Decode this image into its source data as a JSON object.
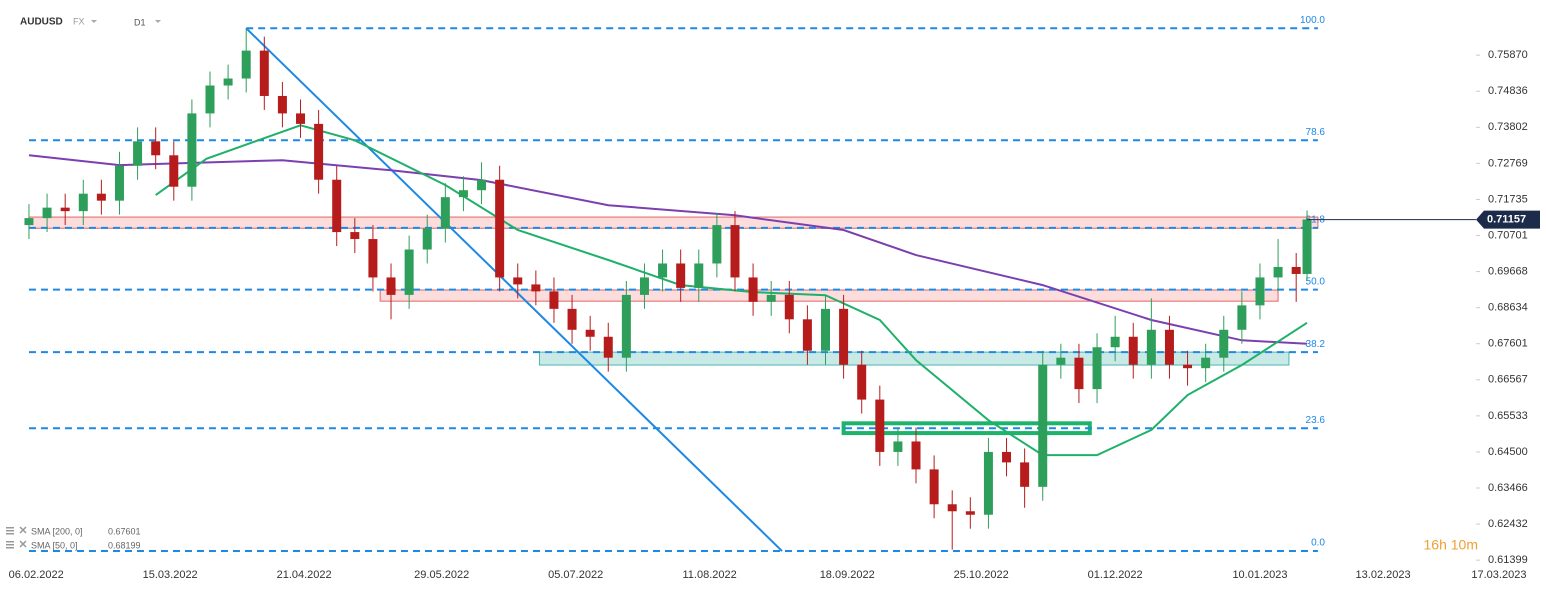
{
  "chart_data": {
    "type": "candlestick",
    "symbol": "AUDUSD",
    "market": "FX",
    "interval": "D1",
    "countdown": "16h 10m",
    "up_color": "#2e9e5b",
    "down_color": "#b71c1c",
    "xlim": [
      "27.01.2022",
      "30.03.2023"
    ],
    "xticks": [
      "06.02.2022",
      "15.03.2022",
      "21.04.2022",
      "29.05.2022",
      "05.07.2022",
      "11.08.2022",
      "18.09.2022",
      "25.10.2022",
      "01.12.2022",
      "10.01.2023",
      "13.02.2023",
      "17.03.2023"
    ],
    "ylim": [
      0.6126,
      0.7745
    ],
    "yticks": [
      {
        "value": 0.7587,
        "label": "0.75870"
      },
      0.74836,
      0.73802,
      0.72769,
      0.71735,
      0.70701,
      0.69668,
      0.68634,
      0.67601,
      0.66567,
      0.65533,
      {
        "value": 0.645,
        "label": "0.64500"
      },
      0.63466,
      0.62432,
      0.61399
    ],
    "x": [
      "04.02.2022",
      "09.02.2022",
      "14.02.2022",
      "19.02.2022",
      "24.02.2022",
      "01.03.2022",
      "06.03.2022",
      "11.03.2022",
      "16.03.2022",
      "21.03.2022",
      "26.03.2022",
      "31.03.2022",
      "05.04.2022",
      "10.04.2022",
      "15.04.2022",
      "20.04.2022",
      "25.04.2022",
      "30.04.2022",
      "05.05.2022",
      "10.05.2022",
      "15.05.2022",
      "20.05.2022",
      "25.05.2022",
      "30.05.2022",
      "04.06.2022",
      "09.06.2022",
      "14.06.2022",
      "19.06.2022",
      "24.06.2022",
      "29.06.2022",
      "04.07.2022",
      "09.07.2022",
      "14.07.2022",
      "19.07.2022",
      "24.07.2022",
      "29.07.2022",
      "03.08.2022",
      "08.08.2022",
      "13.08.2022",
      "18.08.2022",
      "23.08.2022",
      "28.08.2022",
      "02.09.2022",
      "07.09.2022",
      "12.09.2022",
      "17.09.2022",
      "22.09.2022",
      "27.09.2022",
      "02.10.2022",
      "07.10.2022",
      "12.10.2022",
      "17.10.2022",
      "22.10.2022",
      "27.10.2022",
      "01.11.2022",
      "06.11.2022",
      "11.11.2022",
      "16.11.2022",
      "21.11.2022",
      "26.11.2022",
      "01.12.2022",
      "06.12.2022",
      "11.12.2022",
      "16.12.2022",
      "21.12.2022",
      "26.12.2022",
      "31.12.2022",
      "05.01.2023",
      "10.01.2023",
      "15.01.2023",
      "20.01.2023",
      "23.01.2023"
    ],
    "open": [
      0.71,
      0.712,
      0.715,
      0.714,
      0.719,
      0.717,
      0.727,
      0.734,
      0.73,
      0.721,
      0.742,
      0.75,
      0.752,
      0.76,
      0.747,
      0.742,
      0.739,
      0.723,
      0.708,
      0.706,
      0.695,
      0.69,
      0.703,
      0.709,
      0.718,
      0.72,
      0.723,
      0.695,
      0.693,
      0.691,
      0.686,
      0.68,
      0.678,
      0.672,
      0.69,
      0.695,
      0.699,
      0.692,
      0.699,
      0.71,
      0.695,
      0.688,
      0.69,
      0.683,
      0.674,
      0.686,
      0.67,
      0.66,
      0.645,
      0.648,
      0.64,
      0.63,
      0.628,
      0.627,
      0.645,
      0.642,
      0.635,
      0.67,
      0.672,
      0.663,
      0.675,
      0.678,
      0.67,
      0.68,
      0.67,
      0.669,
      0.672,
      0.68,
      0.687,
      0.695,
      0.698,
      0.696
    ],
    "high": [
      0.716,
      0.719,
      0.719,
      0.723,
      0.723,
      0.731,
      0.738,
      0.738,
      0.734,
      0.746,
      0.754,
      0.756,
      0.7664,
      0.764,
      0.751,
      0.746,
      0.743,
      0.727,
      0.712,
      0.71,
      0.699,
      0.707,
      0.713,
      0.722,
      0.724,
      0.728,
      0.727,
      0.699,
      0.697,
      0.695,
      0.69,
      0.684,
      0.682,
      0.694,
      0.699,
      0.703,
      0.703,
      0.703,
      0.7135,
      0.714,
      0.699,
      0.694,
      0.694,
      0.687,
      0.69,
      0.69,
      0.674,
      0.664,
      0.652,
      0.652,
      0.644,
      0.634,
      0.632,
      0.649,
      0.649,
      0.646,
      0.674,
      0.676,
      0.676,
      0.679,
      0.684,
      0.682,
      0.689,
      0.684,
      0.674,
      0.676,
      0.684,
      0.691,
      0.699,
      0.706,
      0.702,
      0.7142
    ],
    "low": [
      0.706,
      0.708,
      0.71,
      0.71,
      0.713,
      0.713,
      0.723,
      0.726,
      0.717,
      0.717,
      0.738,
      0.746,
      0.748,
      0.743,
      0.738,
      0.735,
      0.719,
      0.704,
      0.702,
      0.691,
      0.683,
      0.686,
      0.699,
      0.705,
      0.714,
      0.716,
      0.691,
      0.689,
      0.687,
      0.682,
      0.676,
      0.674,
      0.668,
      0.668,
      0.686,
      0.691,
      0.688,
      0.688,
      0.695,
      0.691,
      0.684,
      0.684,
      0.679,
      0.67,
      0.67,
      0.666,
      0.656,
      0.641,
      0.641,
      0.636,
      0.626,
      0.617,
      0.623,
      0.623,
      0.638,
      0.629,
      0.631,
      0.666,
      0.659,
      0.659,
      0.671,
      0.666,
      0.666,
      0.666,
      0.664,
      0.665,
      0.668,
      0.676,
      0.683,
      0.691,
      0.688,
      0.694
    ],
    "close": [
      0.712,
      0.715,
      0.714,
      0.719,
      0.717,
      0.727,
      0.734,
      0.73,
      0.721,
      0.742,
      0.75,
      0.752,
      0.76,
      0.747,
      0.742,
      0.739,
      0.723,
      0.708,
      0.706,
      0.695,
      0.69,
      0.703,
      0.709,
      0.718,
      0.72,
      0.723,
      0.695,
      0.693,
      0.691,
      0.686,
      0.68,
      0.678,
      0.672,
      0.69,
      0.695,
      0.699,
      0.692,
      0.699,
      0.71,
      0.695,
      0.688,
      0.69,
      0.683,
      0.674,
      0.686,
      0.67,
      0.66,
      0.645,
      0.648,
      0.64,
      0.63,
      0.628,
      0.627,
      0.645,
      0.642,
      0.635,
      0.67,
      0.672,
      0.663,
      0.675,
      0.678,
      0.67,
      0.68,
      0.67,
      0.669,
      0.672,
      0.68,
      0.687,
      0.695,
      0.698,
      0.696,
      0.7116
    ],
    "last_price": 0.71157,
    "indicators": [
      {
        "name": "SMA [200, 0]",
        "last": 0.67601,
        "color": "#7b3fb0",
        "x": [
          "04.02.2022",
          "01.03.2022",
          "15.04.2022",
          "15.05.2022",
          "09.06.2022",
          "14.07.2022",
          "18.08.2022",
          "17.09.2022",
          "07.10.2022",
          "11.11.2022",
          "11.12.2022",
          "05.01.2023",
          "23.01.2023"
        ],
        "values": [
          0.73,
          0.7272,
          0.7286,
          0.7257,
          0.7229,
          0.7157,
          0.7128,
          0.7086,
          0.7014,
          0.6928,
          0.6828,
          0.677,
          0.67601
        ]
      },
      {
        "name": "SMA [50, 0]",
        "last": 0.68199,
        "color": "#1fb06a",
        "x": [
          "11.03.2022",
          "25.03.2022",
          "20.04.2022",
          "05.05.2022",
          "30.05.2022",
          "19.06.2022",
          "14.07.2022",
          "03.08.2022",
          "23.08.2022",
          "12.09.2022",
          "27.09.2022",
          "07.10.2022",
          "27.10.2022",
          "11.11.2022",
          "26.11.2022",
          "11.12.2022",
          "21.12.2022",
          "05.01.2023",
          "23.01.2023"
        ],
        "values": [
          0.7186,
          0.729,
          0.7386,
          0.7343,
          0.7215,
          0.7086,
          0.7,
          0.6928,
          0.6908,
          0.6899,
          0.6828,
          0.6713,
          0.6541,
          0.6441,
          0.6441,
          0.6513,
          0.6613,
          0.6699,
          0.68199
        ]
      }
    ],
    "fib_color": "#1e88e5",
    "fib_levels": [
      {
        "label": "100.0",
        "price": 0.7664,
        "x": [
          "05.04.2022",
          "26.01.2023"
        ]
      },
      {
        "label": "78.6",
        "price": 0.7343,
        "x": [
          "04.02.2022",
          "26.01.2023"
        ]
      },
      {
        "label": "61.8",
        "price": 0.7092,
        "x": [
          "04.02.2022",
          "26.01.2023"
        ]
      },
      {
        "label": "50.0",
        "price": 0.6915,
        "x": [
          "04.02.2022",
          "26.01.2023"
        ]
      },
      {
        "label": "38.2",
        "price": 0.6736,
        "x": [
          "04.02.2022",
          "26.01.2023"
        ]
      },
      {
        "label": "23.6",
        "price": 0.6518,
        "x": [
          "04.02.2022",
          "26.01.2023"
        ]
      },
      {
        "label": "0.0",
        "price": 0.6166,
        "x": [
          "04.02.2022",
          "26.01.2023"
        ]
      }
    ],
    "trendline": {
      "color": "#1e88e5",
      "x": [
        "05.04.2022",
        "31.08.2022"
      ],
      "y": [
        0.7664,
        0.6166
      ]
    },
    "zones": [
      {
        "x": [
          "04.02.2022",
          "26.01.2023"
        ],
        "y": [
          0.7123,
          0.7091
        ],
        "fill": "rgba(244,67,54,0.18)",
        "stroke": "#e06666"
      },
      {
        "x": [
          "12.05.2022",
          "15.01.2023"
        ],
        "y": [
          0.6914,
          0.6882
        ],
        "fill": "rgba(244,67,54,0.18)",
        "stroke": "#e06666"
      },
      {
        "x": [
          "25.06.2022",
          "18.01.2023"
        ],
        "y": [
          0.6736,
          0.6699
        ],
        "fill": "rgba(77,182,172,0.3)",
        "stroke": "#4db6ac"
      },
      {
        "x": [
          "17.09.2022",
          "24.11.2022"
        ],
        "y": [
          0.6532,
          0.6504
        ],
        "fill": "none",
        "stroke": "#1db36a"
      }
    ]
  }
}
